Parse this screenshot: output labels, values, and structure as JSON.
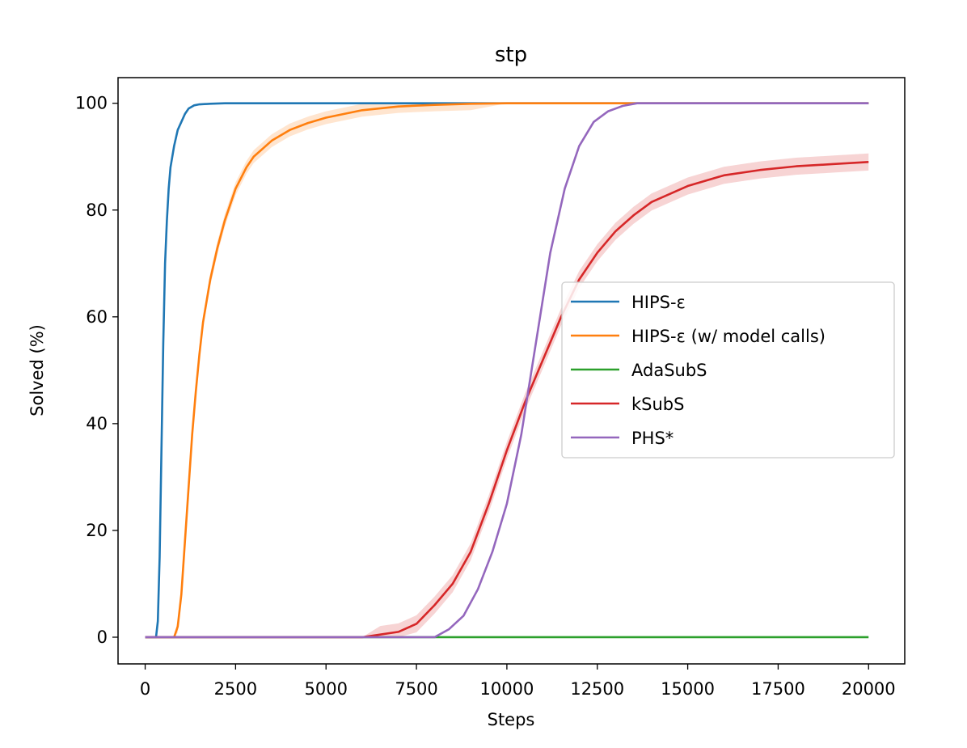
{
  "chart_data": {
    "type": "line",
    "title": "stp",
    "xlabel": "Steps",
    "ylabel": "Solved (%)",
    "xlim": [
      -750,
      21000
    ],
    "ylim": [
      -5,
      104.8
    ],
    "xticks": [
      0,
      2500,
      5000,
      7500,
      10000,
      12500,
      15000,
      17500,
      20000
    ],
    "xtick_labels": [
      "0",
      "2500",
      "5000",
      "7500",
      "10000",
      "12500",
      "15000",
      "17500",
      "20000"
    ],
    "yticks": [
      0,
      20,
      40,
      60,
      80,
      100
    ],
    "ytick_labels": [
      "0",
      "20",
      "40",
      "60",
      "80",
      "100"
    ],
    "grid": false,
    "legend_position": "center-right",
    "series": [
      {
        "name": "HIPS-ε",
        "color": "#1f77b4",
        "x": [
          0,
          300,
          350,
          400,
          450,
          500,
          550,
          600,
          650,
          700,
          800,
          900,
          1000,
          1100,
          1200,
          1350,
          1500,
          1800,
          2200,
          3000,
          5000,
          20000
        ],
        "y": [
          0,
          0,
          3,
          15,
          35,
          55,
          70,
          78,
          84,
          88,
          92,
          95,
          96.5,
          98,
          99,
          99.6,
          99.8,
          99.9,
          100,
          100,
          100,
          100
        ]
      },
      {
        "name": "HIPS-ε (w/ model calls)",
        "color": "#ff7f0e",
        "x": [
          0,
          800,
          900,
          1000,
          1100,
          1200,
          1300,
          1400,
          1500,
          1600,
          1800,
          2000,
          2200,
          2500,
          2800,
          3000,
          3500,
          4000,
          4500,
          5000,
          6000,
          7000,
          8000,
          9000,
          10000,
          20000
        ],
        "y": [
          0,
          0,
          2,
          8,
          18,
          28,
          38,
          46,
          53,
          59,
          67,
          73,
          78,
          84,
          88,
          90,
          93,
          95,
          96.3,
          97.3,
          98.7,
          99.4,
          99.7,
          99.9,
          100,
          100
        ],
        "band": 1.2
      },
      {
        "name": "AdaSubS",
        "color": "#2ca02c",
        "x": [
          0,
          20000
        ],
        "y": [
          0,
          0
        ]
      },
      {
        "name": "kSubS",
        "color": "#d62728",
        "x": [
          0,
          6000,
          6500,
          7000,
          7500,
          8000,
          8500,
          9000,
          9500,
          10000,
          10500,
          11000,
          11500,
          12000,
          12500,
          13000,
          13500,
          14000,
          14500,
          15000,
          16000,
          17000,
          18000,
          19000,
          20000
        ],
        "y": [
          0,
          0,
          0.5,
          1,
          2.5,
          6,
          10,
          16,
          25,
          35,
          44,
          52,
          60,
          67,
          72,
          76,
          79,
          81.5,
          83,
          84.5,
          86.5,
          87.5,
          88.2,
          88.6,
          89
        ],
        "band": 1.6
      },
      {
        "name": "PHS*",
        "color": "#9467bd",
        "x": [
          0,
          8000,
          8400,
          8800,
          9200,
          9600,
          10000,
          10400,
          10800,
          11200,
          11600,
          12000,
          12400,
          12800,
          13200,
          13600,
          14000,
          14400,
          20000
        ],
        "y": [
          0,
          0,
          1.5,
          4,
          9,
          16,
          25,
          38,
          55,
          72,
          84,
          92,
          96.5,
          98.5,
          99.5,
          100,
          100,
          100,
          100
        ]
      }
    ]
  }
}
